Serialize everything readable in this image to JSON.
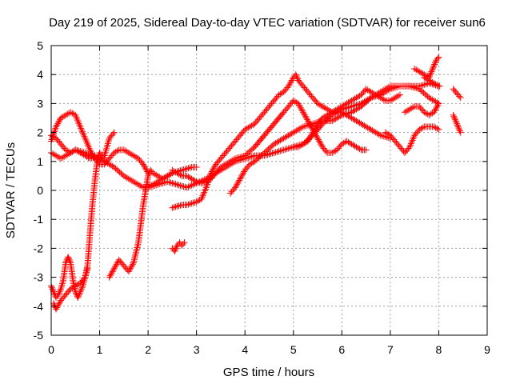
{
  "chart_data": {
    "type": "scatter",
    "title": "Day 219 of 2025, Sidereal Day-to-day VTEC variation (SDTVAR) for receiver sun6",
    "xlabel": "GPS time / hours",
    "ylabel": "SDTVAR / TECUs",
    "xlim": [
      0,
      9
    ],
    "ylim": [
      -5,
      5
    ],
    "x_ticks": [
      "0",
      "1",
      "2",
      "3",
      "4",
      "5",
      "6",
      "7",
      "8",
      "9"
    ],
    "y_ticks": [
      "-5",
      "-4",
      "-3",
      "-2",
      "-1",
      "0",
      "1",
      "2",
      "3",
      "4",
      "5"
    ],
    "grid": true,
    "legend": "none",
    "marker": "plus",
    "color": "#ff0000",
    "series": [
      {
        "x": [
          0.0,
          0.1,
          0.2,
          0.3,
          0.4,
          0.5,
          0.6,
          0.7,
          0.8,
          0.9,
          1.0,
          1.1,
          1.2,
          1.3,
          1.4,
          1.5,
          1.6,
          1.7,
          1.8,
          1.9,
          2.0
        ],
        "y": [
          1.7,
          2.2,
          2.5,
          2.6,
          2.7,
          2.6,
          2.2,
          1.8,
          1.4,
          1.1,
          0.9,
          0.9,
          1.1,
          1.3,
          1.4,
          1.4,
          1.3,
          1.2,
          1.1,
          0.9,
          0.6
        ]
      },
      {
        "x": [
          0.0,
          0.1,
          0.2,
          0.3,
          0.5,
          0.7,
          0.9,
          1.1,
          1.3,
          1.5,
          1.7,
          1.9,
          2.1,
          2.3,
          2.5,
          2.7,
          2.9,
          3.0
        ],
        "y": [
          1.3,
          1.2,
          1.1,
          1.2,
          1.4,
          1.3,
          1.1,
          1.0,
          0.8,
          0.5,
          0.3,
          0.1,
          0.2,
          0.4,
          0.6,
          0.7,
          0.8,
          0.8
        ]
      },
      {
        "x": [
          0.0,
          0.1,
          0.2,
          0.3,
          0.4,
          0.5,
          0.6,
          0.7,
          0.8,
          0.9,
          1.0,
          1.1,
          1.2,
          1.3
        ],
        "y": [
          1.9,
          1.8,
          1.6,
          1.4,
          1.3,
          1.4,
          1.3,
          1.2,
          1.1,
          1.2,
          1.0,
          1.2,
          1.8,
          2.0
        ]
      },
      {
        "x": [
          0.0,
          0.05,
          0.1,
          0.15,
          0.2,
          0.25,
          0.3,
          0.35,
          0.4,
          0.45,
          0.5,
          0.55,
          0.6,
          0.65,
          0.7,
          0.75
        ],
        "y": [
          -3.3,
          -3.5,
          -3.7,
          -3.6,
          -3.4,
          -3.1,
          -2.5,
          -2.3,
          -2.5,
          -3.1,
          -3.5,
          -3.7,
          -3.5,
          -3.3,
          -3.0,
          -2.7
        ]
      },
      {
        "x": [
          0.05,
          0.1,
          0.2,
          0.3,
          0.4,
          0.5,
          0.6,
          0.7,
          0.75,
          0.8,
          0.85,
          0.9,
          0.95,
          1.0,
          1.05,
          1.1
        ],
        "y": [
          -3.9,
          -4.1,
          -3.8,
          -3.6,
          -3.4,
          -3.3,
          -3.2,
          -3.0,
          -2.6,
          -1.5,
          -0.5,
          0.3,
          1.0,
          1.3,
          1.2,
          1.1
        ]
      },
      {
        "x": [
          1.2,
          1.3,
          1.4,
          1.5,
          1.6,
          1.7,
          1.8,
          1.9,
          2.0,
          2.05,
          2.1,
          2.2,
          2.3,
          2.4,
          2.5
        ],
        "y": [
          -3.0,
          -2.7,
          -2.4,
          -2.6,
          -2.8,
          -2.5,
          -1.8,
          -0.5,
          0.5,
          0.7,
          0.6,
          0.5,
          0.4,
          0.5,
          0.6
        ]
      },
      {
        "x": [
          2.5,
          2.55,
          2.6,
          2.65,
          2.7,
          2.75
        ],
        "y": [
          -2.0,
          -2.1,
          -1.9,
          -1.8,
          -1.9,
          -1.8
        ]
      },
      {
        "x": [
          2.5,
          2.6,
          2.7,
          2.8,
          2.9,
          3.0,
          3.1,
          3.2,
          3.3,
          3.4,
          3.5,
          3.6,
          3.7,
          3.8,
          3.9,
          4.0,
          4.1,
          4.2,
          4.3,
          4.4,
          4.5,
          4.6,
          4.7,
          4.8,
          4.9,
          5.0,
          5.05,
          5.1
        ],
        "y": [
          -0.6,
          -0.55,
          -0.5,
          -0.5,
          -0.45,
          -0.4,
          -0.3,
          0.1,
          0.6,
          0.9,
          1.1,
          1.3,
          1.5,
          1.7,
          1.9,
          2.1,
          2.2,
          2.3,
          2.5,
          2.7,
          2.9,
          3.1,
          3.3,
          3.4,
          3.6,
          3.9,
          4.0,
          3.8
        ]
      },
      {
        "x": [
          5.1,
          5.2,
          5.3,
          5.4,
          5.5,
          5.6,
          5.7,
          5.8,
          5.9,
          6.0,
          6.1,
          6.2,
          6.3,
          6.4,
          6.5,
          6.6,
          6.7,
          6.8,
          6.9,
          7.0
        ],
        "y": [
          3.8,
          3.6,
          3.4,
          3.2,
          3.0,
          2.9,
          2.8,
          2.7,
          2.7,
          2.7,
          2.6,
          2.5,
          2.4,
          2.3,
          2.2,
          2.1,
          2.0,
          1.9,
          1.85,
          1.8
        ]
      },
      {
        "x": [
          2.5,
          2.6,
          2.7,
          2.8,
          2.9,
          3.0,
          3.1,
          3.2,
          3.3,
          3.4,
          3.5,
          3.6,
          3.8,
          4.0,
          4.2,
          4.4,
          4.6,
          4.8,
          4.9,
          5.0,
          5.1,
          5.2,
          5.3,
          5.4,
          5.5,
          5.6,
          5.7,
          5.8,
          5.9,
          6.0,
          6.1,
          6.2,
          6.3,
          6.4,
          6.5
        ],
        "y": [
          0.7,
          0.6,
          0.5,
          0.5,
          0.4,
          0.3,
          0.25,
          0.3,
          0.4,
          0.6,
          0.8,
          0.9,
          1.1,
          1.2,
          1.5,
          1.9,
          2.3,
          2.7,
          2.9,
          3.1,
          3.0,
          2.7,
          2.4,
          2.1,
          1.8,
          1.5,
          1.3,
          1.3,
          1.4,
          1.6,
          1.7,
          1.6,
          1.5,
          1.4,
          1.4
        ]
      },
      {
        "x": [
          3.7,
          3.8,
          3.9,
          4.0,
          4.1,
          4.2,
          4.4,
          4.6,
          4.8,
          5.0,
          5.2,
          5.4,
          5.6,
          5.8,
          6.0,
          6.2,
          6.4,
          6.6,
          6.8,
          7.0,
          7.2,
          7.4,
          7.6,
          7.8,
          8.0
        ],
        "y": [
          -0.1,
          0.1,
          0.4,
          0.7,
          0.9,
          1.0,
          1.3,
          1.6,
          1.8,
          2.0,
          2.2,
          2.3,
          2.4,
          2.4,
          2.6,
          2.7,
          2.9,
          3.2,
          3.4,
          3.6,
          3.6,
          3.6,
          3.6,
          3.7,
          3.6
        ]
      },
      {
        "x": [
          2.0,
          2.2,
          2.4,
          2.6,
          2.8,
          3.0,
          3.2,
          3.4,
          3.6,
          3.8,
          4.0,
          4.2,
          4.4,
          4.6,
          4.8,
          5.0,
          5.2,
          5.4,
          5.6,
          5.8,
          6.0,
          6.2,
          6.4,
          6.5,
          6.6,
          6.8,
          7.0,
          7.2,
          7.4,
          7.6,
          7.8,
          8.0
        ],
        "y": [
          0.1,
          0.2,
          0.3,
          0.2,
          0.1,
          0.25,
          0.4,
          0.6,
          0.8,
          1.0,
          1.1,
          1.2,
          1.2,
          1.3,
          1.4,
          1.5,
          1.6,
          1.9,
          2.3,
          2.6,
          2.8,
          2.9,
          3.0,
          3.1,
          3.2,
          3.3,
          3.5,
          3.6,
          3.6,
          3.5,
          3.2,
          3.0
        ]
      },
      {
        "x": [
          5.0,
          5.1,
          5.2,
          5.3,
          5.4,
          5.5,
          5.6,
          5.7,
          5.8,
          5.9,
          6.0,
          6.1,
          6.2,
          6.3,
          6.4,
          6.5,
          6.6,
          6.7,
          6.8,
          6.9,
          7.0,
          7.1,
          7.2
        ],
        "y": [
          1.5,
          1.5,
          1.6,
          1.7,
          2.0,
          2.3,
          2.5,
          2.6,
          2.7,
          2.8,
          2.9,
          3.0,
          3.1,
          3.2,
          3.3,
          3.5,
          3.4,
          3.3,
          3.2,
          3.1,
          3.1,
          3.2,
          3.3
        ]
      },
      {
        "x": [
          6.9,
          7.0,
          7.1,
          7.2,
          7.3,
          7.4,
          7.5,
          7.6,
          7.7,
          7.8,
          7.9,
          8.0
        ],
        "y": [
          2.0,
          1.9,
          1.7,
          1.5,
          1.3,
          1.5,
          1.9,
          2.1,
          2.2,
          2.2,
          2.2,
          2.1
        ]
      },
      {
        "x": [
          7.3,
          7.4,
          7.5,
          7.6,
          7.7,
          7.8,
          7.9,
          8.0
        ],
        "y": [
          2.7,
          2.8,
          2.9,
          2.9,
          2.7,
          2.6,
          2.7,
          3.0
        ]
      },
      {
        "x": [
          7.5,
          7.6,
          7.7,
          7.8,
          7.85,
          7.9,
          7.95,
          8.0
        ],
        "y": [
          4.2,
          4.1,
          4.0,
          3.9,
          4.1,
          4.3,
          4.5,
          4.6
        ]
      },
      {
        "x": [
          7.7,
          7.8,
          7.9,
          8.0,
          8.02
        ],
        "y": [
          3.9,
          3.8,
          3.7,
          3.6,
          3.6
        ]
      },
      {
        "x": [
          8.3,
          8.35,
          8.4,
          8.45
        ],
        "y": [
          3.5,
          3.4,
          3.3,
          3.2
        ]
      },
      {
        "x": [
          8.3,
          8.35,
          8.4,
          8.45
        ],
        "y": [
          2.6,
          2.4,
          2.2,
          2.0
        ]
      }
    ]
  }
}
